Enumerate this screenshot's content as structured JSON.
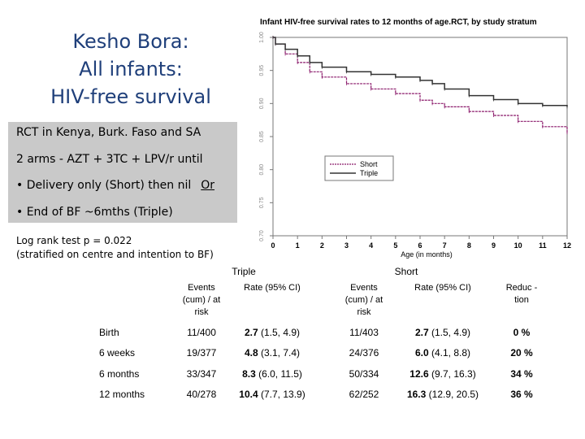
{
  "slide": {
    "title_lines": [
      "Kesho Bora:",
      "All infants:",
      "HIV-free survival"
    ],
    "info": {
      "line1": "RCT in Kenya, Burk. Faso and SA",
      "line2": "2 arms - AZT + 3TC + LPV/r until",
      "line3": "• Delivery only (Short) then nil",
      "or_word": "Or",
      "line4": "• End of BF ~6mths (Triple)"
    },
    "logrank_line1": "Log rank test p = 0.022",
    "logrank_line2": "(stratified on centre and intention to BF)"
  },
  "chart_data": {
    "type": "line",
    "title": "Infant HIV-free survival rates to 12 months of age.RCT, by study stratum",
    "xlabel": "Age (in months)",
    "ylabel": "",
    "xlim": [
      0,
      12
    ],
    "ylim": [
      0.7,
      1.0
    ],
    "x_ticks": [
      0,
      1,
      2,
      3,
      4,
      5,
      6,
      7,
      8,
      9,
      10,
      11,
      12
    ],
    "y_ticks": [
      0.7,
      0.75,
      0.8,
      0.85,
      0.9,
      0.95,
      1.0
    ],
    "y_tick_labels": [
      "0.70",
      "0.75",
      "0.80",
      "0.85",
      "0.90",
      "0.95",
      "1.00"
    ],
    "legend_position": "right",
    "grid": false,
    "series": [
      {
        "name": "Short",
        "color": "#8b1a6b",
        "style": "dashed",
        "points": [
          [
            0,
            1.0
          ],
          [
            0.1,
            0.99
          ],
          [
            0.5,
            0.975
          ],
          [
            1,
            0.962
          ],
          [
            1.5,
            0.948
          ],
          [
            2,
            0.94
          ],
          [
            3,
            0.93
          ],
          [
            4,
            0.922
          ],
          [
            5,
            0.915
          ],
          [
            6,
            0.905
          ],
          [
            6.5,
            0.9
          ],
          [
            7,
            0.895
          ],
          [
            8,
            0.888
          ],
          [
            9,
            0.882
          ],
          [
            10,
            0.873
          ],
          [
            11,
            0.865
          ],
          [
            12,
            0.856
          ]
        ]
      },
      {
        "name": "Triple",
        "color": "#333333",
        "style": "solid",
        "points": [
          [
            0,
            1.0
          ],
          [
            0.1,
            0.99
          ],
          [
            0.5,
            0.982
          ],
          [
            1,
            0.972
          ],
          [
            1.5,
            0.962
          ],
          [
            2,
            0.955
          ],
          [
            3,
            0.948
          ],
          [
            4,
            0.944
          ],
          [
            5,
            0.94
          ],
          [
            6,
            0.935
          ],
          [
            6.5,
            0.93
          ],
          [
            7,
            0.922
          ],
          [
            8,
            0.912
          ],
          [
            9,
            0.906
          ],
          [
            10,
            0.9
          ],
          [
            11,
            0.897
          ],
          [
            12,
            0.895
          ]
        ]
      }
    ]
  },
  "table": {
    "group_triple": "Triple",
    "group_short": "Short",
    "headers": {
      "events_triple": "Events (cum) / at risk",
      "rate_triple": "Rate (95% CI)",
      "events_short": "Events (cum) / at risk",
      "rate_short": "Rate (95% CI)",
      "reduction": "Reduc -tion"
    },
    "rows": [
      {
        "label": "Birth",
        "t_events": "11/400",
        "t_rate": "2.7",
        "t_ci": "(1.5, 4.9)",
        "s_events": "11/403",
        "s_rate": "2.7",
        "s_ci": "(1.5, 4.9)",
        "reduction": "0 %"
      },
      {
        "label": "6 weeks",
        "t_events": "19/377",
        "t_rate": "4.8",
        "t_ci": "(3.1, 7.4)",
        "s_events": "24/376",
        "s_rate": "6.0",
        "s_ci": "(4.1, 8.8)",
        "reduction": "20 %"
      },
      {
        "label": "6 months",
        "t_events": "33/347",
        "t_rate": "8.3",
        "t_ci": "(6.0, 11.5)",
        "s_events": "50/334",
        "s_rate": "12.6",
        "s_ci": "(9.7, 16.3)",
        "reduction": "34 %"
      },
      {
        "label": "12 months",
        "t_events": "40/278",
        "t_rate": "10.4",
        "t_ci": "(7.7, 13.9)",
        "s_events": "62/252",
        "s_rate": "16.3",
        "s_ci": "(12.9, 20.5)",
        "reduction": "36 %"
      }
    ]
  }
}
